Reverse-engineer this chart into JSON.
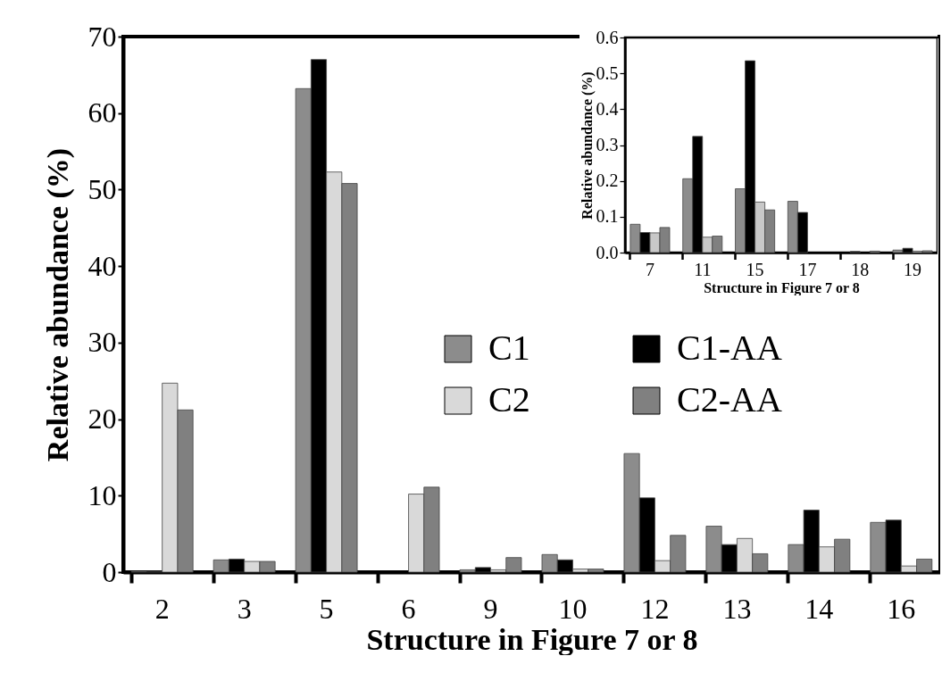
{
  "chart_data": [
    {
      "type": "bar",
      "xlabel": "Structure in Figure 7 or 8",
      "ylabel": "Relative abundance (%)",
      "categories": [
        "2",
        "3",
        "5",
        "6",
        "9",
        "10",
        "12",
        "13",
        "14",
        "16"
      ],
      "series": [
        {
          "name": "C1",
          "color": "#8c8c8c",
          "values": [
            0.1,
            1.6,
            63.2,
            null,
            0.3,
            2.3,
            15.5,
            6.0,
            3.6,
            6.5
          ]
        },
        {
          "name": "C1-AA",
          "color": "#000000",
          "values": [
            0.1,
            1.7,
            67.0,
            null,
            0.6,
            1.6,
            9.7,
            3.6,
            8.1,
            6.8
          ]
        },
        {
          "name": "C2",
          "color": "#d9d9d9",
          "values": [
            24.7,
            1.4,
            52.3,
            10.2,
            0.3,
            0.4,
            1.5,
            4.4,
            3.3,
            0.8
          ]
        },
        {
          "name": "C2-AA",
          "color": "#808080",
          "values": [
            21.2,
            1.4,
            50.8,
            11.1,
            1.9,
            0.4,
            4.8,
            2.4,
            4.3,
            1.7
          ]
        }
      ],
      "ylim": [
        0,
        70
      ],
      "yticks": [
        0,
        10,
        20,
        30,
        40,
        50,
        60,
        70
      ],
      "legend": "right"
    },
    {
      "type": "bar",
      "xlabel": "Structure in Figure 7 or 8",
      "ylabel": "Relative abundance (%)",
      "categories": [
        "7",
        "11",
        "15",
        "17",
        "18",
        "19"
      ],
      "series": [
        {
          "color": "#8c8c8c",
          "values": [
            0.079,
            0.206,
            0.178,
            0.143,
            null,
            0.007
          ]
        },
        {
          "color": "#000000",
          "values": [
            0.056,
            0.324,
            0.535,
            0.112,
            0.003,
            0.012
          ]
        },
        {
          "color": "#c8c8c8",
          "values": [
            0.055,
            0.043,
            0.141,
            null,
            null,
            0.004
          ]
        },
        {
          "color": "#808080",
          "values": [
            0.07,
            0.046,
            0.119,
            null,
            0.004,
            0.005
          ]
        }
      ],
      "ylim": [
        0,
        0.6
      ],
      "yticks": [
        {
          "value": 0,
          "label": "0.0"
        },
        {
          "value": 0.1,
          "label": "0.1"
        },
        {
          "value": 0.2,
          "label": "0.2"
        },
        {
          "value": 0.3,
          "label": "0.3"
        },
        {
          "value": 0.4,
          "label": "0.4"
        },
        {
          "value": 0.5,
          "label": "0.5"
        },
        {
          "value": 0.6,
          "label": "0.6"
        }
      ]
    }
  ]
}
